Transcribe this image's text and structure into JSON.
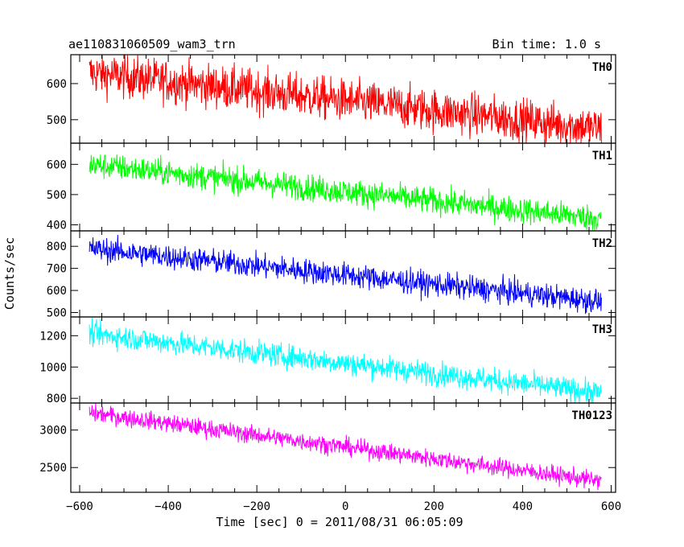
{
  "header": {
    "title": "ae110831060509_wam3_trn",
    "bin_time": "Bin time: 1.0 s"
  },
  "chart_data": {
    "type": "line",
    "title": "ae110831060509_wam3_trn",
    "xlabel": "Time [sec] 0 = 2011/08/31 06:05:09",
    "ylabel": "Counts/sec",
    "xlim": [
      -620,
      610
    ],
    "x_ticks": [
      -600,
      -400,
      -200,
      0,
      200,
      400,
      600
    ],
    "x_tick_labels": [
      "−600",
      "−400",
      "−200",
      "0",
      "200",
      "400",
      "600"
    ],
    "time_range": [
      -578,
      578
    ],
    "bin_time_s": 1.0,
    "panels": [
      {
        "name": "TH0",
        "color": "#ff0000",
        "ylim": [
          435,
          680
        ],
        "y_ticks": [
          500,
          600
        ],
        "y_tick_labels": [
          "500",
          "600"
        ],
        "start_level": 630,
        "end_level": 475,
        "noise": 30
      },
      {
        "name": "TH1",
        "color": "#00ff00",
        "ylim": [
          380,
          670
        ],
        "y_ticks": [
          400,
          500,
          600
        ],
        "y_tick_labels": [
          "400",
          "500",
          "600"
        ],
        "start_level": 600,
        "end_level": 420,
        "noise": 22
      },
      {
        "name": "TH2",
        "color": "#0000ff",
        "ylim": [
          480,
          870
        ],
        "y_ticks": [
          500,
          600,
          700,
          800
        ],
        "y_tick_labels": [
          "500",
          "600",
          "700",
          "800"
        ],
        "start_level": 790,
        "end_level": 550,
        "noise": 28
      },
      {
        "name": "TH3",
        "color": "#00ffff",
        "ylim": [
          770,
          1320
        ],
        "y_ticks": [
          800,
          1000,
          1200
        ],
        "y_tick_labels": [
          "800",
          "1000",
          "1200"
        ],
        "start_level": 1215,
        "end_level": 835,
        "noise": 38
      },
      {
        "name": "TH0123",
        "color": "#ff00ff",
        "ylim": [
          2170,
          3360
        ],
        "y_ticks": [
          2500,
          3000
        ],
        "y_tick_labels": [
          "2500",
          "3000"
        ],
        "start_level": 3230,
        "end_level": 2320,
        "noise": 60
      }
    ]
  }
}
